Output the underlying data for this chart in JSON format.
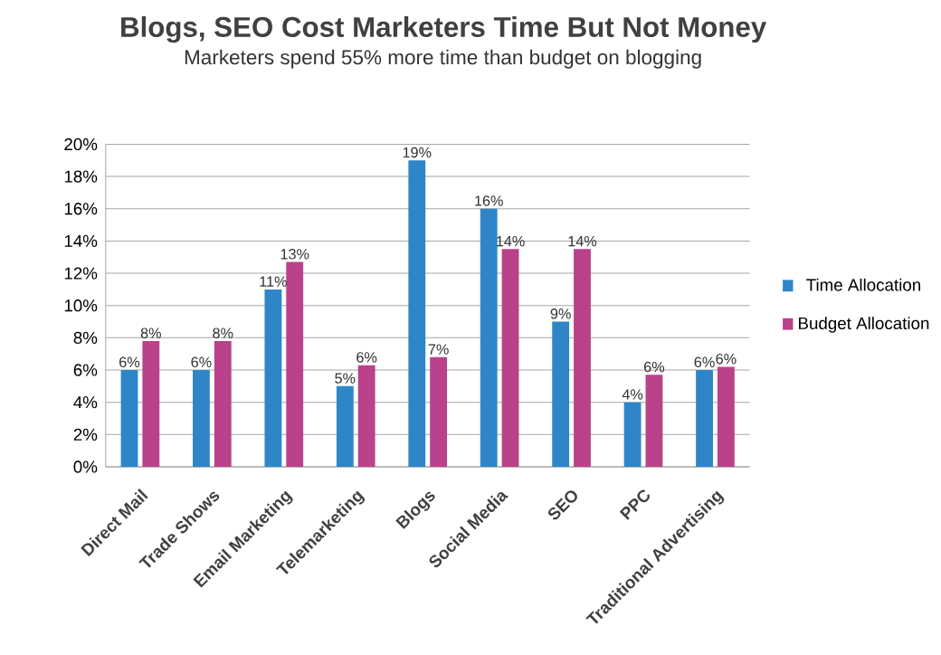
{
  "chart_data": {
    "type": "bar",
    "title": "Blogs, SEO Cost Marketers Time But Not Money",
    "subtitle": "Marketers spend 55% more time than budget on blogging",
    "categories": [
      "Direct Mail",
      "Trade Shows",
      "Email Marketing",
      "Telemarketing",
      "Blogs",
      "Social Media",
      "SEO",
      "PPC",
      "Traditional Advertising"
    ],
    "series": [
      {
        "name": "Time Allocation",
        "color": "#2e86c8",
        "values": [
          6.0,
          6.0,
          11.0,
          5.0,
          19.0,
          16.0,
          9.0,
          4.0,
          6.0
        ],
        "value_labels": [
          "6%",
          "6%",
          "11%",
          "5%",
          "19%",
          "16%",
          "9%",
          "4%",
          "6%"
        ]
      },
      {
        "name": "Budget Allocation",
        "color": "#b9428a",
        "values": [
          7.8,
          7.8,
          12.7,
          6.3,
          6.8,
          13.5,
          13.5,
          5.7,
          6.2
        ],
        "value_labels": [
          "8%",
          "8%",
          "13%",
          "6%",
          "7%",
          "14%",
          "14%",
          "6%",
          "6%"
        ]
      }
    ],
    "ylim": [
      0,
      20
    ],
    "yticks": [
      {
        "value": 0,
        "label": "0%"
      },
      {
        "value": 2,
        "label": "2%"
      },
      {
        "value": 4,
        "label": "4%"
      },
      {
        "value": 6,
        "label": "6%"
      },
      {
        "value": 8,
        "label": "8%"
      },
      {
        "value": 10,
        "label": "10%"
      },
      {
        "value": 12,
        "label": "12%"
      },
      {
        "value": 14,
        "label": "14%"
      },
      {
        "value": 16,
        "label": "16%"
      },
      {
        "value": 18,
        "label": "18%"
      },
      {
        "value": 20,
        "label": "20%"
      }
    ],
    "grid": "y",
    "legend": "right"
  }
}
